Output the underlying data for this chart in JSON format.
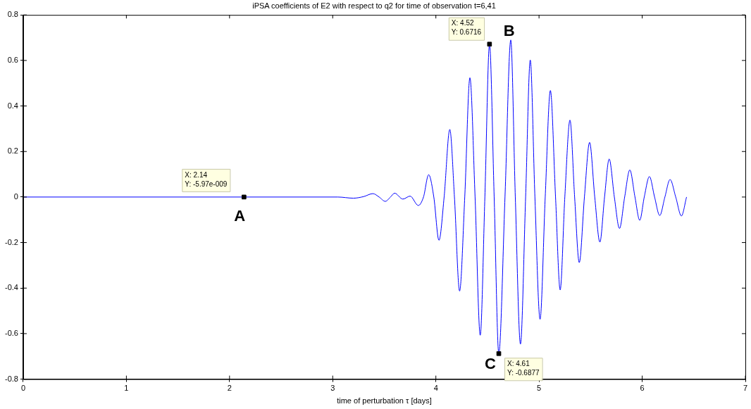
{
  "chart_data": {
    "type": "line",
    "title": "iPSA coefficients of E2 with respect to q2 for time of observation t=6,41",
    "xlabel": "time of perturbation τ [days]",
    "xlim": [
      0,
      7
    ],
    "xticks": [
      0,
      1,
      2,
      3,
      4,
      5,
      6,
      7
    ],
    "ylim": [
      -0.8,
      0.8
    ],
    "yticks": [
      -0.8,
      -0.6,
      -0.4,
      -0.2,
      0,
      0.2,
      0.4,
      0.6,
      0.8
    ],
    "grid": false,
    "legend": false,
    "series": [
      {
        "color": "#0000ff",
        "marker": "none",
        "line_style": "solid",
        "x": [
          0,
          3.05,
          3.2,
          3.3,
          3.39,
          3.45,
          3.51,
          3.56,
          3.6,
          3.68,
          3.75,
          3.83,
          3.88,
          3.93,
          3.98,
          4.03,
          4.08,
          4.135,
          4.18,
          4.23,
          4.28,
          4.33,
          4.38,
          4.43,
          4.475,
          4.52,
          4.565,
          4.61,
          4.67,
          4.726,
          4.77,
          4.82,
          4.87,
          4.915,
          4.96,
          5.01,
          5.06,
          5.11,
          5.16,
          5.205,
          5.25,
          5.3,
          5.345,
          5.39,
          5.44,
          5.49,
          5.54,
          5.59,
          5.635,
          5.68,
          5.73,
          5.78,
          5.83,
          5.88,
          5.93,
          5.976,
          6.02,
          6.07,
          6.12,
          6.17,
          6.22,
          6.27,
          6.325,
          6.38,
          6.43
        ],
        "values": [
          0,
          0,
          -0.005,
          0.002,
          0.015,
          0,
          -0.019,
          0,
          0.017,
          -0.009,
          0.004,
          -0.037,
          0,
          0.098,
          0,
          -0.19,
          0,
          0.297,
          0,
          -0.413,
          0,
          0.524,
          0,
          -0.607,
          0,
          0.6716,
          0,
          -0.6877,
          0,
          0.69,
          0,
          -0.646,
          0,
          0.602,
          0,
          -0.537,
          0,
          0.468,
          0,
          -0.408,
          0,
          0.338,
          0,
          -0.288,
          0,
          0.24,
          0,
          -0.198,
          0,
          0.167,
          0,
          -0.138,
          0,
          0.119,
          0,
          -0.102,
          0,
          0.09,
          0,
          -0.081,
          0,
          0.077,
          0,
          -0.083,
          0
        ]
      },
      {
        "type": "scatter",
        "color": "#000000",
        "marker": "square",
        "x": [
          2.14,
          4.52,
          4.61
        ],
        "values": [
          -5.97e-09,
          0.6716,
          -0.6877
        ]
      }
    ],
    "annotations": [
      {
        "text": "X: 2.14\nY: -5.97e-009",
        "x": 2.14,
        "y": -5.97e-09
      },
      {
        "text": "A",
        "x": 2.14,
        "y": -5.97e-09
      },
      {
        "text": "X: 4.52\nY: 0.6716",
        "x": 4.52,
        "y": 0.6716
      },
      {
        "text": "B",
        "x": 4.52,
        "y": 0.6716
      },
      {
        "text": "X: 4.61\nY: -0.6877",
        "x": 4.61,
        "y": -0.6877
      },
      {
        "text": "C",
        "x": 4.61,
        "y": -0.6877
      }
    ]
  }
}
